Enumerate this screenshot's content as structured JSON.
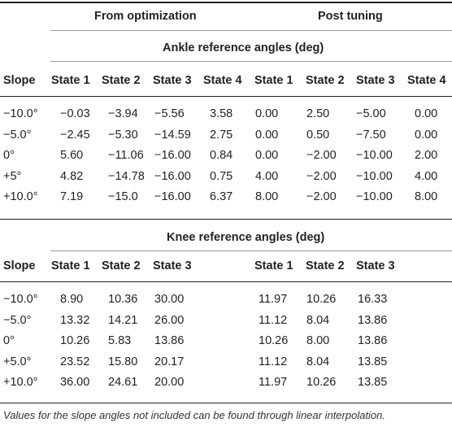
{
  "groups": {
    "optimization": "From optimization",
    "post_tuning": "Post tuning"
  },
  "ankle": {
    "title": "Ankle reference angles (deg)",
    "headers": [
      "Slope",
      "State 1",
      "State 2",
      "State 3",
      "State 4",
      "State 1",
      "State 2",
      "State 3",
      "State 4"
    ],
    "rows": [
      [
        "−10.0°",
        "−0.03",
        "−3.94",
        "−5.56",
        "3.58",
        "0.00",
        "2.50",
        "−5.00",
        "0.00"
      ],
      [
        "−5.0°",
        "−2.45",
        "−5.30",
        "−14.59",
        "2.75",
        "0.00",
        "0.50",
        "−7.50",
        "0.00"
      ],
      [
        "0°",
        "5.60",
        "−11.06",
        "−16.00",
        "0.84",
        "0.00",
        "−2.00",
        "−10.00",
        "2.00"
      ],
      [
        "+5°",
        "4.82",
        "−14.78",
        "−16.00",
        "0.75",
        "4.00",
        "−2.00",
        "−10.00",
        "4.00"
      ],
      [
        "+10.0°",
        "7.19",
        "−15.0",
        "−16.00",
        "6.37",
        "8.00",
        "−2.00",
        "−10.00",
        "8.00"
      ]
    ]
  },
  "knee": {
    "title": "Knee reference angles (deg)",
    "headers": [
      "Slope",
      "State 1",
      "State 2",
      "State 3",
      "State 1",
      "State 2",
      "State 3"
    ],
    "rows": [
      [
        "−10.0°",
        "8.90",
        "10.36",
        "30.00",
        "11.97",
        "10.26",
        "16.33"
      ],
      [
        "−5.0°",
        "13.32",
        "14.21",
        "26.00",
        "11.12",
        "8.04",
        "13.86"
      ],
      [
        "0°",
        "10.26",
        "5.83",
        "13.86",
        "10.26",
        "8.00",
        "13.86"
      ],
      [
        "+5.0°",
        "23.52",
        "15.80",
        "20.17",
        "11.12",
        "8.04",
        "13.85"
      ],
      [
        "+10.0°",
        "36.00",
        "24.61",
        "20.00",
        "11.97",
        "10.26",
        "13.85"
      ]
    ]
  },
  "footnote": "Values for the slope angles not included can be found through linear interpolation."
}
